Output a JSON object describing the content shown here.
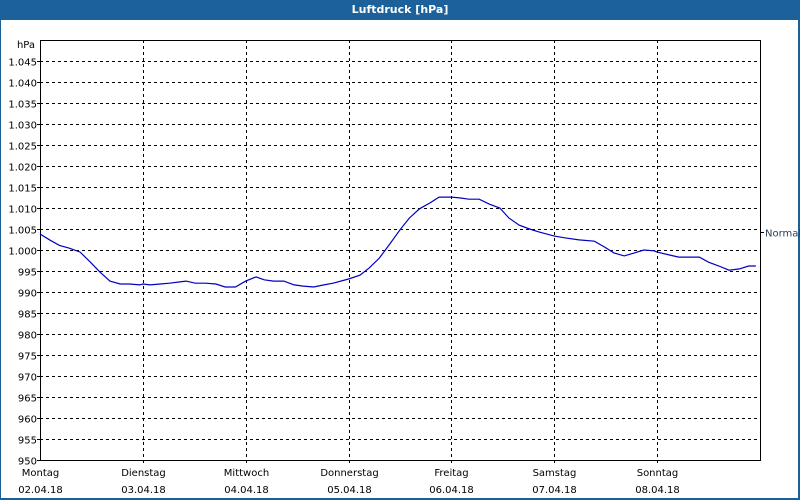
{
  "window": {
    "title": "Luftdruck [hPa]"
  },
  "colors": {
    "titlebar": "#1c6199",
    "line": "#0000c0",
    "grid": "#000000",
    "background": "#ffffff"
  },
  "chart_data": {
    "type": "line",
    "title": "Luftdruck [hPa]",
    "xlabel": "",
    "ylabel": "hPa",
    "ylim": [
      950,
      1050
    ],
    "yticks": [
      "1.045",
      "1.040",
      "1.035",
      "1.030",
      "1.025",
      "1.020",
      "1.015",
      "1.010",
      "1.005",
      "1.000",
      "995",
      "990",
      "985",
      "980",
      "975",
      "970",
      "965",
      "960",
      "955",
      "950"
    ],
    "xticks": [
      {
        "day": "Montag",
        "date": "02.04.18"
      },
      {
        "day": "Dienstag",
        "date": "03.04.18"
      },
      {
        "day": "Mittwoch",
        "date": "04.04.18"
      },
      {
        "day": "Donnerstag",
        "date": "05.04.18"
      },
      {
        "day": "Freitag",
        "date": "06.04.18"
      },
      {
        "day": "Samstag",
        "date": "07.04.18"
      },
      {
        "day": "Sonntag",
        "date": "08.04.18"
      }
    ],
    "grid": true,
    "reference_line": {
      "label": "Normal",
      "value": 1005
    },
    "series": [
      {
        "name": "Luftdruck",
        "x_days": [
          0.0,
          0.1,
          0.19,
          0.29,
          0.39,
          0.49,
          0.58,
          0.68,
          0.78,
          0.87,
          0.97,
          1.0,
          1.07,
          1.17,
          1.26,
          1.36,
          1.42,
          1.51,
          1.61,
          1.71,
          1.8,
          1.9,
          2.0,
          2.1,
          2.18,
          2.27,
          2.37,
          2.47,
          2.56,
          2.66,
          2.76,
          2.85,
          3.0,
          3.11,
          3.2,
          3.3,
          3.4,
          3.5,
          3.59,
          3.69,
          3.79,
          3.88,
          4.0,
          4.08,
          4.17,
          4.27,
          4.37,
          4.47,
          4.56,
          4.66,
          4.76,
          4.85,
          5.0,
          5.1,
          5.24,
          5.39,
          5.49,
          5.58,
          5.68,
          5.78,
          5.87,
          5.97,
          6.0,
          6.12,
          6.21,
          6.31,
          6.41,
          6.5,
          6.6,
          6.7,
          6.8,
          6.89,
          6.96
        ],
        "values": [
          1003.8,
          1002.3,
          1001.1,
          1000.4,
          999.5,
          997.1,
          994.8,
          992.6,
          991.9,
          991.9,
          991.7,
          991.9,
          991.7,
          991.9,
          992.1,
          992.4,
          992.6,
          992.1,
          992.1,
          991.9,
          991.2,
          991.2,
          992.6,
          993.6,
          992.9,
          992.6,
          992.6,
          991.7,
          991.4,
          991.2,
          991.7,
          992.1,
          993.1,
          994.0,
          995.7,
          998.1,
          1001.4,
          1004.8,
          1007.6,
          1009.8,
          1011.2,
          1012.6,
          1012.6,
          1012.4,
          1012.1,
          1012.1,
          1010.9,
          1010.0,
          1007.6,
          1005.9,
          1005.0,
          1004.3,
          1003.3,
          1002.9,
          1002.4,
          1002.1,
          1000.7,
          999.3,
          998.6,
          999.3,
          1000.0,
          999.8,
          999.5,
          998.8,
          998.3,
          998.3,
          998.3,
          997.1,
          996.2,
          995.2,
          995.5,
          996.2,
          996.2
        ]
      }
    ]
  }
}
